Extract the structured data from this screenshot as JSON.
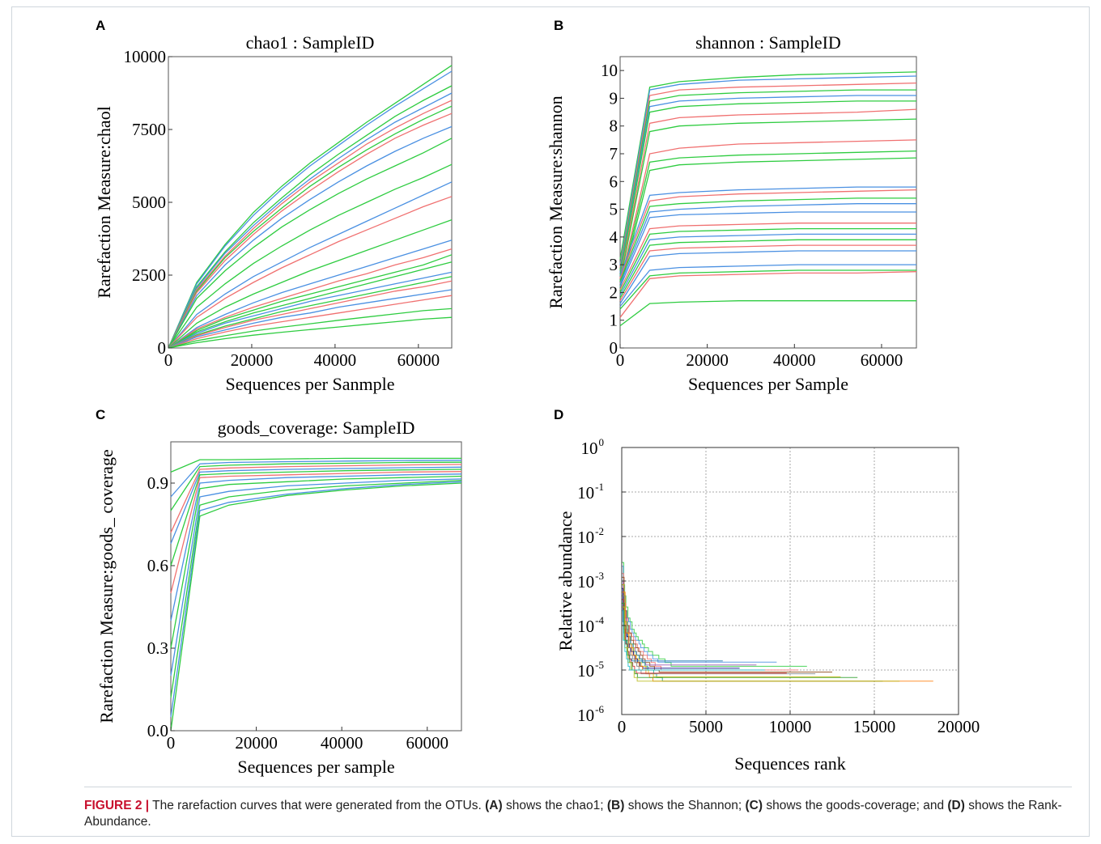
{
  "figure": {
    "caption": {
      "lead": "FIGURE 2 |",
      "parts": [
        " The rarefaction curves that were generated from the OTUs. ",
        "(A)",
        " shows the chao1; ",
        "(B)",
        " shows the Shannon; ",
        "(C)",
        " shows the goods-coverage; and ",
        "(D)",
        " shows the Rank-Abundance."
      ]
    },
    "colors": {
      "green": "#2ecc40",
      "blue": "#4a90e2",
      "red": "#f07070",
      "caption_red": "#c8102e"
    }
  },
  "chart_data": [
    {
      "panel": "A",
      "type": "line",
      "title": "chao1 : SampleID",
      "xlabel": "Sequences per Sanmple",
      "ylabel": "Rarefaction Measure:chaol",
      "xlim": [
        0,
        68000
      ],
      "ylim": [
        0,
        10000
      ],
      "xticks": [
        0,
        20000,
        40000,
        60000
      ],
      "yticks": [
        0,
        2500,
        5000,
        7500,
        10000
      ],
      "x": [
        0,
        6800,
        13600,
        20400,
        27200,
        34000,
        40800,
        47600,
        54400,
        61200,
        68000
      ],
      "series": [
        {
          "color": "green",
          "values": [
            0,
            2250,
            3550,
            4650,
            5550,
            6350,
            7050,
            7750,
            8400,
            9050,
            9700
          ]
        },
        {
          "color": "blue",
          "values": [
            0,
            2200,
            3500,
            4550,
            5450,
            6250,
            6950,
            7650,
            8300,
            8900,
            9500
          ]
        },
        {
          "color": "green",
          "values": [
            0,
            2100,
            3300,
            4300,
            5150,
            5950,
            6650,
            7300,
            7950,
            8500,
            9000
          ]
        },
        {
          "color": "blue",
          "values": [
            0,
            2050,
            3250,
            4200,
            5050,
            5800,
            6500,
            7150,
            7750,
            8250,
            8750
          ]
        },
        {
          "color": "red",
          "values": [
            0,
            2000,
            3150,
            4100,
            4950,
            5700,
            6350,
            7000,
            7550,
            8050,
            8500
          ]
        },
        {
          "color": "green",
          "values": [
            0,
            1950,
            3100,
            4000,
            4800,
            5550,
            6200,
            6800,
            7350,
            7850,
            8300
          ]
        },
        {
          "color": "red",
          "values": [
            0,
            1900,
            3000,
            3900,
            4700,
            5400,
            6050,
            6650,
            7200,
            7650,
            8050
          ]
        },
        {
          "color": "blue",
          "values": [
            0,
            1800,
            2850,
            3700,
            4450,
            5100,
            5700,
            6250,
            6750,
            7200,
            7600
          ]
        },
        {
          "color": "green",
          "values": [
            0,
            1700,
            2650,
            3450,
            4150,
            4750,
            5300,
            5800,
            6250,
            6700,
            7200
          ]
        },
        {
          "color": "green",
          "values": [
            0,
            1400,
            2200,
            2900,
            3500,
            4050,
            4550,
            5000,
            5450,
            5850,
            6300
          ]
        },
        {
          "color": "blue",
          "values": [
            0,
            1150,
            1850,
            2450,
            2950,
            3450,
            3900,
            4350,
            4800,
            5250,
            5700
          ]
        },
        {
          "color": "red",
          "values": [
            0,
            1050,
            1700,
            2250,
            2750,
            3200,
            3650,
            4050,
            4450,
            4850,
            5200
          ]
        },
        {
          "color": "green",
          "values": [
            0,
            850,
            1400,
            1850,
            2250,
            2650,
            3000,
            3350,
            3700,
            4050,
            4400
          ]
        },
        {
          "color": "blue",
          "values": [
            0,
            700,
            1150,
            1550,
            1900,
            2200,
            2500,
            2800,
            3100,
            3400,
            3700
          ]
        },
        {
          "color": "red",
          "values": [
            0,
            650,
            1050,
            1400,
            1700,
            2000,
            2300,
            2550,
            2850,
            3100,
            3400
          ]
        },
        {
          "color": "green",
          "values": [
            0,
            600,
            1000,
            1300,
            1600,
            1850,
            2100,
            2350,
            2600,
            2850,
            3200
          ]
        },
        {
          "color": "green",
          "values": [
            0,
            550,
            900,
            1200,
            1450,
            1700,
            1950,
            2200,
            2450,
            2700,
            2950
          ]
        },
        {
          "color": "blue",
          "values": [
            0,
            500,
            850,
            1100,
            1350,
            1600,
            1800,
            2000,
            2200,
            2400,
            2600
          ]
        },
        {
          "color": "green",
          "values": [
            0,
            450,
            750,
            1000,
            1250,
            1450,
            1650,
            1850,
            2050,
            2250,
            2450
          ]
        },
        {
          "color": "red",
          "values": [
            0,
            420,
            700,
            950,
            1150,
            1350,
            1550,
            1750,
            1950,
            2100,
            2300
          ]
        },
        {
          "color": "blue",
          "values": [
            0,
            380,
            620,
            850,
            1050,
            1200,
            1400,
            1550,
            1700,
            1850,
            2000
          ]
        },
        {
          "color": "red",
          "values": [
            0,
            320,
            550,
            750,
            900,
            1050,
            1200,
            1350,
            1500,
            1650,
            1800
          ]
        },
        {
          "color": "green",
          "values": [
            0,
            250,
            420,
            580,
            710,
            830,
            950,
            1060,
            1170,
            1280,
            1350
          ]
        },
        {
          "color": "green",
          "values": [
            0,
            180,
            320,
            440,
            540,
            630,
            720,
            810,
            900,
            990,
            1050
          ]
        }
      ]
    },
    {
      "panel": "B",
      "type": "line",
      "title": "shannon : SampleID",
      "xlabel": "Sequences per Sample",
      "ylabel": "Rarefaction Measure:shannon",
      "xlim": [
        0,
        68000
      ],
      "ylim": [
        0,
        10.5
      ],
      "xticks": [
        0,
        20000,
        40000,
        60000
      ],
      "yticks": [
        0,
        1,
        2,
        3,
        4,
        5,
        6,
        7,
        8,
        9,
        10
      ],
      "x": [
        0,
        6800,
        13600,
        27200,
        40800,
        54400,
        68000
      ],
      "series": [
        {
          "color": "green",
          "values": [
            3.2,
            9.4,
            9.6,
            9.75,
            9.85,
            9.9,
            9.95
          ]
        },
        {
          "color": "blue",
          "values": [
            3.0,
            9.3,
            9.5,
            9.65,
            9.7,
            9.75,
            9.8
          ]
        },
        {
          "color": "red",
          "values": [
            2.9,
            9.1,
            9.3,
            9.4,
            9.45,
            9.5,
            9.55
          ]
        },
        {
          "color": "green",
          "values": [
            2.8,
            8.9,
            9.1,
            9.2,
            9.25,
            9.3,
            9.3
          ]
        },
        {
          "color": "blue",
          "values": [
            2.7,
            8.7,
            8.9,
            9.0,
            9.05,
            9.1,
            9.1
          ]
        },
        {
          "color": "green",
          "values": [
            2.6,
            8.5,
            8.7,
            8.8,
            8.85,
            8.9,
            8.9
          ]
        },
        {
          "color": "red",
          "values": [
            2.5,
            8.1,
            8.3,
            8.4,
            8.45,
            8.5,
            8.6
          ]
        },
        {
          "color": "green",
          "values": [
            2.4,
            7.8,
            8.0,
            8.1,
            8.15,
            8.2,
            8.25
          ]
        },
        {
          "color": "red",
          "values": [
            2.3,
            7.0,
            7.2,
            7.35,
            7.4,
            7.45,
            7.5
          ]
        },
        {
          "color": "green",
          "values": [
            2.2,
            6.7,
            6.85,
            6.95,
            7.0,
            7.05,
            7.1
          ]
        },
        {
          "color": "green",
          "values": [
            2.1,
            6.4,
            6.6,
            6.7,
            6.75,
            6.8,
            6.85
          ]
        },
        {
          "color": "blue",
          "values": [
            2.6,
            5.5,
            5.6,
            5.7,
            5.75,
            5.8,
            5.8
          ]
        },
        {
          "color": "red",
          "values": [
            2.5,
            5.3,
            5.45,
            5.55,
            5.6,
            5.65,
            5.7
          ]
        },
        {
          "color": "green",
          "values": [
            2.4,
            5.1,
            5.2,
            5.3,
            5.35,
            5.4,
            5.4
          ]
        },
        {
          "color": "blue",
          "values": [
            2.3,
            4.9,
            5.0,
            5.1,
            5.15,
            5.2,
            5.2
          ]
        },
        {
          "color": "blue",
          "values": [
            2.2,
            4.7,
            4.8,
            4.85,
            4.9,
            4.9,
            4.9
          ]
        },
        {
          "color": "red",
          "values": [
            2.1,
            4.3,
            4.4,
            4.45,
            4.5,
            4.5,
            4.5
          ]
        },
        {
          "color": "green",
          "values": [
            2.0,
            4.1,
            4.2,
            4.25,
            4.3,
            4.3,
            4.3
          ]
        },
        {
          "color": "blue",
          "values": [
            1.9,
            3.9,
            4.0,
            4.05,
            4.1,
            4.1,
            4.1
          ]
        },
        {
          "color": "green",
          "values": [
            1.8,
            3.7,
            3.8,
            3.85,
            3.9,
            3.9,
            3.9
          ]
        },
        {
          "color": "red",
          "values": [
            1.7,
            3.5,
            3.6,
            3.65,
            3.7,
            3.7,
            3.7
          ]
        },
        {
          "color": "blue",
          "values": [
            1.6,
            3.3,
            3.4,
            3.45,
            3.5,
            3.5,
            3.5
          ]
        },
        {
          "color": "blue",
          "values": [
            1.5,
            2.8,
            2.9,
            2.95,
            3.0,
            3.0,
            3.0
          ]
        },
        {
          "color": "green",
          "values": [
            1.4,
            2.6,
            2.7,
            2.75,
            2.8,
            2.8,
            2.8
          ]
        },
        {
          "color": "red",
          "values": [
            1.1,
            2.5,
            2.6,
            2.65,
            2.7,
            2.7,
            2.75
          ]
        },
        {
          "color": "green",
          "values": [
            0.8,
            1.6,
            1.65,
            1.7,
            1.7,
            1.7,
            1.7
          ]
        }
      ]
    },
    {
      "panel": "C",
      "type": "line",
      "title": "goods_coverage: SampleID",
      "xlabel": "Sequences per sample",
      "ylabel": "Rarefaction Measure:goods_ coverage",
      "xlim": [
        0,
        68000
      ],
      "ylim": [
        0,
        1.05
      ],
      "xticks": [
        0,
        20000,
        40000,
        60000
      ],
      "yticks": [
        0.0,
        0.3,
        0.6,
        0.9
      ],
      "ytick_labels": [
        "0.0",
        "0.3",
        "0.6",
        "0.9"
      ],
      "x": [
        0,
        6800,
        13600,
        27200,
        40800,
        54400,
        68000
      ],
      "series": [
        {
          "color": "green",
          "values": [
            0.94,
            0.985,
            0.985,
            0.988,
            0.99,
            0.99,
            0.99
          ]
        },
        {
          "color": "blue",
          "values": [
            0.85,
            0.97,
            0.975,
            0.978,
            0.98,
            0.982,
            0.983
          ]
        },
        {
          "color": "green",
          "values": [
            0.8,
            0.96,
            0.965,
            0.97,
            0.972,
            0.975,
            0.976
          ]
        },
        {
          "color": "red",
          "values": [
            0.72,
            0.95,
            0.955,
            0.96,
            0.963,
            0.966,
            0.968
          ]
        },
        {
          "color": "blue",
          "values": [
            0.68,
            0.94,
            0.945,
            0.95,
            0.953,
            0.956,
            0.958
          ]
        },
        {
          "color": "green",
          "values": [
            0.6,
            0.93,
            0.935,
            0.94,
            0.945,
            0.948,
            0.95
          ]
        },
        {
          "color": "red",
          "values": [
            0.5,
            0.92,
            0.925,
            0.93,
            0.935,
            0.94,
            0.942
          ]
        },
        {
          "color": "blue",
          "values": [
            0.4,
            0.9,
            0.91,
            0.92,
            0.925,
            0.93,
            0.933
          ]
        },
        {
          "color": "green",
          "values": [
            0.3,
            0.88,
            0.895,
            0.905,
            0.915,
            0.92,
            0.925
          ]
        },
        {
          "color": "blue",
          "values": [
            0.2,
            0.85,
            0.87,
            0.89,
            0.9,
            0.91,
            0.915
          ]
        },
        {
          "color": "green",
          "values": [
            0.12,
            0.82,
            0.85,
            0.875,
            0.89,
            0.9,
            0.91
          ]
        },
        {
          "color": "blue",
          "values": [
            0.05,
            0.8,
            0.83,
            0.86,
            0.88,
            0.895,
            0.905
          ]
        },
        {
          "color": "green",
          "values": [
            0.0,
            0.78,
            0.82,
            0.855,
            0.875,
            0.89,
            0.9
          ]
        }
      ]
    },
    {
      "panel": "D",
      "type": "line",
      "xlabel": "Sequences rank",
      "ylabel": "Relative abundance",
      "xlim": [
        0,
        20000
      ],
      "xticks": [
        0,
        5000,
        10000,
        15000,
        20000
      ],
      "yscale": "log",
      "ylim": [
        1e-06,
        1
      ],
      "ytick_exponents": [
        0,
        -1,
        -2,
        -3,
        -4,
        -5,
        -6
      ],
      "grid": true,
      "series": [
        {
          "color": "#2ecc40",
          "end": 11000,
          "start": 0.0025,
          "floor": 1.2e-05
        },
        {
          "color": "#4a90e2",
          "end": 9200,
          "start": 0.002,
          "floor": 1.5e-05
        },
        {
          "color": "#f07070",
          "end": 10500,
          "start": 0.0015,
          "floor": 1e-05
        },
        {
          "color": "#8b4513",
          "end": 12500,
          "start": 0.0012,
          "floor": 9e-06
        },
        {
          "color": "#9b59b6",
          "end": 8000,
          "start": 0.001,
          "floor": 1.3e-05
        },
        {
          "color": "#16a085",
          "end": 15500,
          "start": 0.0009,
          "floor": 5.5e-06
        },
        {
          "color": "#e6b800",
          "end": 13000,
          "start": 0.0008,
          "floor": 7e-06
        },
        {
          "color": "#000080",
          "end": 7000,
          "start": 0.0007,
          "floor": 1.1e-05
        },
        {
          "color": "#ff7f0e",
          "end": 18500,
          "start": 0.0006,
          "floor": 5.2e-06
        },
        {
          "color": "#7f7f7f",
          "end": 11500,
          "start": 0.0005,
          "floor": 7.5e-06
        },
        {
          "color": "#1f77b4",
          "end": 6000,
          "start": 0.0004,
          "floor": 1.6e-05
        },
        {
          "color": "#d62728",
          "end": 9800,
          "start": 0.00035,
          "floor": 8.5e-06
        },
        {
          "color": "#2ca02c",
          "end": 14000,
          "start": 0.0003,
          "floor": 6.2e-06
        },
        {
          "color": "#bcbd22",
          "end": 16500,
          "start": 0.00025,
          "floor": 5.5e-06
        },
        {
          "color": "#17becf",
          "end": 8500,
          "start": 0.0002,
          "floor": 9.5e-06
        }
      ]
    }
  ]
}
